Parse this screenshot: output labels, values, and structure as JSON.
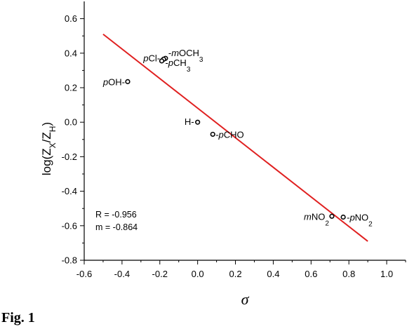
{
  "caption": "Fig. 1",
  "chart_data": {
    "type": "scatter",
    "xlabel": "σ",
    "ylabel": {
      "base": "log(Z",
      "sub1": "X",
      "mid": "/Z",
      "sub2": "H",
      "end": ")"
    },
    "xlim": [
      -0.6,
      1.1
    ],
    "ylim": [
      -0.8,
      0.7
    ],
    "x_ticks": [
      "-0.6",
      "-0.4",
      "-0.2",
      "0.0",
      "0.2",
      "0.4",
      "0.6",
      "0.8",
      "1.0"
    ],
    "y_ticks": [
      "-0.8",
      "-0.6",
      "-0.4",
      "-0.2",
      "0.0",
      "0.2",
      "0.4",
      "0.6"
    ],
    "points": [
      {
        "x": -0.37,
        "y": 0.235,
        "label": [
          {
            "t": "p",
            "it": true
          },
          {
            "t": "OH-"
          }
        ]
      },
      {
        "x": -0.17,
        "y": 0.37,
        "label": [
          {
            "t": "-"
          },
          {
            "t": "m",
            "it": true
          },
          {
            "t": "OCH"
          },
          {
            "t": "3",
            "sub": true
          }
        ]
      },
      {
        "x": -0.18,
        "y": 0.365,
        "label": [
          {
            "t": "p",
            "it": true
          },
          {
            "t": "Cl-"
          }
        ]
      },
      {
        "x": -0.19,
        "y": 0.355,
        "label": [
          {
            "t": "-"
          },
          {
            "t": "p",
            "it": true
          },
          {
            "t": "CH"
          },
          {
            "t": "3",
            "sub": true
          }
        ]
      },
      {
        "x": 0.0,
        "y": 0.0,
        "label": [
          {
            "t": "H-"
          }
        ]
      },
      {
        "x": 0.08,
        "y": -0.07,
        "label": [
          {
            "t": "-"
          },
          {
            "t": "p",
            "it": true
          },
          {
            "t": "CHO"
          }
        ]
      },
      {
        "x": 0.71,
        "y": -0.545,
        "label": [
          {
            "t": "m",
            "it": true
          },
          {
            "t": "NO"
          },
          {
            "t": "2",
            "sub": true
          }
        ]
      },
      {
        "x": 0.77,
        "y": -0.55,
        "label": [
          {
            "t": "-"
          },
          {
            "t": "p",
            "it": true
          },
          {
            "t": "NO"
          },
          {
            "t": "2",
            "sub": true
          }
        ]
      }
    ],
    "fit_line": {
      "x": [
        -0.5,
        0.9
      ],
      "y": [
        0.51,
        -0.69
      ],
      "color": "#e02020"
    },
    "stats": [
      "R = -0.956",
      "m = -0.864"
    ]
  }
}
